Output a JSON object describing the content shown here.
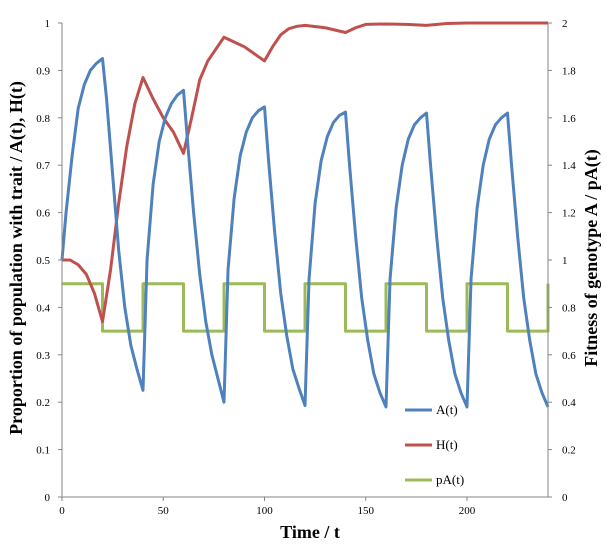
{
  "chart_data": {
    "type": "line",
    "title": "",
    "xlabel": "Time  / t",
    "ylabel": "Proportion of population  with trait  / A(t), H(t)",
    "y2label": "Fitness of genotype A / pA(t)",
    "xlim": [
      0,
      240
    ],
    "ylim": [
      0,
      1
    ],
    "y2lim": [
      0,
      2
    ],
    "x_ticks": [
      0,
      50,
      100,
      150,
      200
    ],
    "y_ticks": [
      0,
      0.1,
      0.2,
      0.3,
      0.4,
      0.5,
      0.6,
      0.7,
      0.8,
      0.9,
      1
    ],
    "y2_ticks": [
      0,
      0.2,
      0.4,
      0.6,
      0.8,
      1,
      1.2,
      1.4,
      1.6,
      1.8,
      2
    ],
    "grid": false,
    "legend_position": "bottom-right",
    "series": [
      {
        "name": "A(t)",
        "axis": "left",
        "color": "#4f81bd",
        "points": [
          [
            0,
            0.5
          ],
          [
            2,
            0.6
          ],
          [
            5,
            0.72
          ],
          [
            8,
            0.82
          ],
          [
            11,
            0.87
          ],
          [
            14,
            0.9
          ],
          [
            17,
            0.915
          ],
          [
            20,
            0.925
          ],
          [
            22,
            0.84
          ],
          [
            25,
            0.68
          ],
          [
            28,
            0.52
          ],
          [
            31,
            0.4
          ],
          [
            34,
            0.32
          ],
          [
            37,
            0.27
          ],
          [
            40,
            0.225
          ],
          [
            42,
            0.5
          ],
          [
            45,
            0.66
          ],
          [
            48,
            0.75
          ],
          [
            51,
            0.8
          ],
          [
            54,
            0.83
          ],
          [
            57,
            0.848
          ],
          [
            60,
            0.858
          ],
          [
            62,
            0.75
          ],
          [
            65,
            0.6
          ],
          [
            68,
            0.47
          ],
          [
            71,
            0.37
          ],
          [
            74,
            0.3
          ],
          [
            77,
            0.25
          ],
          [
            80,
            0.2
          ],
          [
            82,
            0.48
          ],
          [
            85,
            0.63
          ],
          [
            88,
            0.72
          ],
          [
            91,
            0.77
          ],
          [
            94,
            0.8
          ],
          [
            97,
            0.815
          ],
          [
            100,
            0.823
          ],
          [
            102,
            0.71
          ],
          [
            105,
            0.56
          ],
          [
            108,
            0.43
          ],
          [
            111,
            0.34
          ],
          [
            114,
            0.27
          ],
          [
            117,
            0.23
          ],
          [
            120,
            0.193
          ],
          [
            122,
            0.46
          ],
          [
            125,
            0.62
          ],
          [
            128,
            0.71
          ],
          [
            131,
            0.76
          ],
          [
            134,
            0.79
          ],
          [
            137,
            0.805
          ],
          [
            140,
            0.812
          ],
          [
            142,
            0.7
          ],
          [
            145,
            0.55
          ],
          [
            148,
            0.42
          ],
          [
            151,
            0.33
          ],
          [
            154,
            0.26
          ],
          [
            157,
            0.22
          ],
          [
            160,
            0.19
          ],
          [
            162,
            0.46
          ],
          [
            165,
            0.61
          ],
          [
            168,
            0.7
          ],
          [
            171,
            0.755
          ],
          [
            174,
            0.785
          ],
          [
            177,
            0.8
          ],
          [
            180,
            0.81
          ],
          [
            182,
            0.7
          ],
          [
            185,
            0.55
          ],
          [
            188,
            0.42
          ],
          [
            191,
            0.33
          ],
          [
            194,
            0.26
          ],
          [
            197,
            0.22
          ],
          [
            200,
            0.19
          ],
          [
            202,
            0.46
          ],
          [
            205,
            0.61
          ],
          [
            208,
            0.7
          ],
          [
            211,
            0.755
          ],
          [
            214,
            0.785
          ],
          [
            217,
            0.8
          ],
          [
            220,
            0.81
          ],
          [
            222,
            0.7
          ],
          [
            225,
            0.55
          ],
          [
            228,
            0.42
          ],
          [
            231,
            0.33
          ],
          [
            234,
            0.26
          ],
          [
            237,
            0.22
          ],
          [
            240,
            0.19
          ]
        ]
      },
      {
        "name": "H(t)",
        "axis": "left",
        "color": "#c0504d",
        "points": [
          [
            0,
            0.5
          ],
          [
            4,
            0.5
          ],
          [
            8,
            0.49
          ],
          [
            12,
            0.47
          ],
          [
            16,
            0.43
          ],
          [
            20,
            0.37
          ],
          [
            24,
            0.48
          ],
          [
            28,
            0.62
          ],
          [
            32,
            0.74
          ],
          [
            36,
            0.83
          ],
          [
            40,
            0.885
          ],
          [
            45,
            0.84
          ],
          [
            50,
            0.8
          ],
          [
            55,
            0.77
          ],
          [
            60,
            0.725
          ],
          [
            64,
            0.8
          ],
          [
            68,
            0.88
          ],
          [
            72,
            0.92
          ],
          [
            76,
            0.945
          ],
          [
            80,
            0.97
          ],
          [
            85,
            0.96
          ],
          [
            90,
            0.95
          ],
          [
            95,
            0.935
          ],
          [
            100,
            0.92
          ],
          [
            104,
            0.95
          ],
          [
            108,
            0.975
          ],
          [
            112,
            0.988
          ],
          [
            116,
            0.993
          ],
          [
            120,
            0.995
          ],
          [
            130,
            0.99
          ],
          [
            140,
            0.98
          ],
          [
            145,
            0.99
          ],
          [
            150,
            0.997
          ],
          [
            160,
            0.998
          ],
          [
            170,
            0.997
          ],
          [
            180,
            0.995
          ],
          [
            190,
            0.999
          ],
          [
            200,
            1.0
          ],
          [
            240,
            1.0
          ]
        ]
      },
      {
        "name": "pA(t)",
        "axis": "right",
        "color": "#9bbb59",
        "points": [
          [
            0,
            0.9
          ],
          [
            20,
            0.9
          ],
          [
            20,
            0.7
          ],
          [
            40,
            0.7
          ],
          [
            40,
            0.9
          ],
          [
            60,
            0.9
          ],
          [
            60,
            0.7
          ],
          [
            80,
            0.7
          ],
          [
            80,
            0.9
          ],
          [
            100,
            0.9
          ],
          [
            100,
            0.7
          ],
          [
            120,
            0.7
          ],
          [
            120,
            0.9
          ],
          [
            140,
            0.9
          ],
          [
            140,
            0.7
          ],
          [
            160,
            0.7
          ],
          [
            160,
            0.9
          ],
          [
            180,
            0.9
          ],
          [
            180,
            0.7
          ],
          [
            200,
            0.7
          ],
          [
            200,
            0.9
          ],
          [
            220,
            0.9
          ],
          [
            220,
            0.7
          ],
          [
            240,
            0.7
          ],
          [
            240,
            0.9
          ]
        ]
      }
    ]
  }
}
